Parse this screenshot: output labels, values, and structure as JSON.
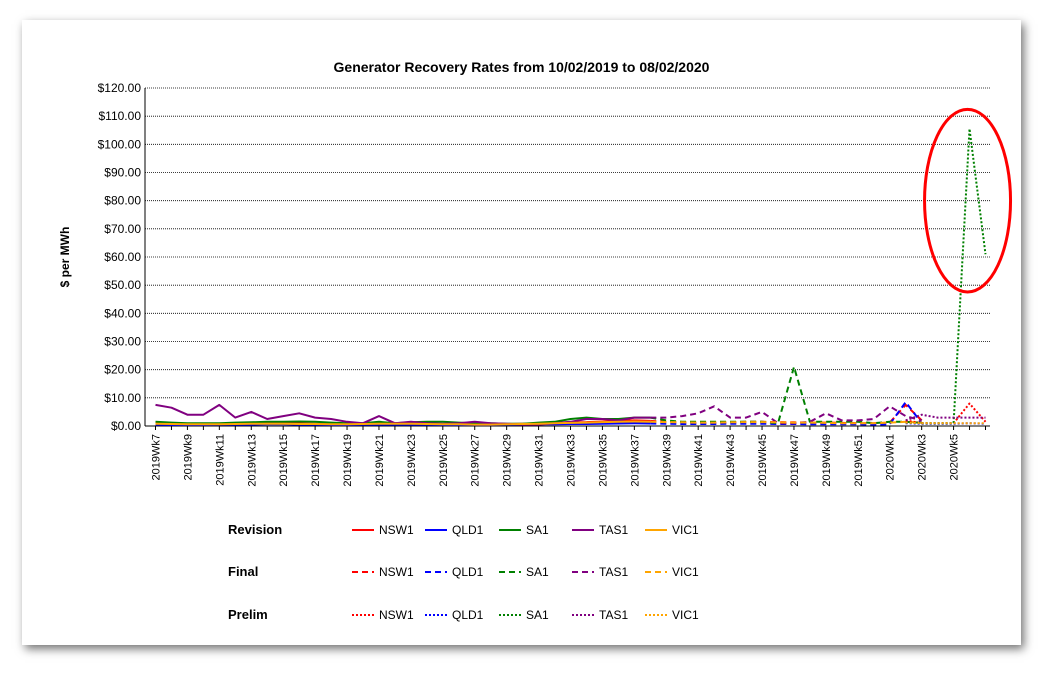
{
  "chart_data": {
    "type": "line",
    "title": "Generator Recovery Rates from 10/02/2019 to 08/02/2020",
    "ylabel": "$ per MWh",
    "xlabel": "",
    "ylim": [
      0,
      120
    ],
    "y_ticks": [
      "$0.00",
      "$10.00",
      "$20.00",
      "$30.00",
      "$40.00",
      "$50.00",
      "$60.00",
      "$70.00",
      "$80.00",
      "$90.00",
      "$100.00",
      "$110.00",
      "$120.00"
    ],
    "grid": "horizontal dotted",
    "x_labels": [
      "2019Wk7",
      "2019Wk9",
      "2019Wk11",
      "2019Wk13",
      "2019Wk15",
      "2019Wk17",
      "2019Wk19",
      "2019Wk21",
      "2019Wk23",
      "2019Wk25",
      "2019Wk27",
      "2019Wk29",
      "2019Wk31",
      "2019Wk33",
      "2019Wk35",
      "2019Wk37",
      "2019Wk39",
      "2019Wk41",
      "2019Wk43",
      "2019Wk45",
      "2019Wk47",
      "2019Wk49",
      "2019Wk51",
      "2020Wk1",
      "2020Wk3",
      "2020Wk5"
    ],
    "legend_groups": [
      {
        "group": "Revision",
        "style": "solid"
      },
      {
        "group": "Final",
        "style": "dashed"
      },
      {
        "group": "Prelim",
        "style": "dotted"
      }
    ],
    "regions": [
      {
        "name": "NSW1",
        "color": "#ff0000"
      },
      {
        "name": "QLD1",
        "color": "#0000ff"
      },
      {
        "name": "SA1",
        "color": "#008000"
      },
      {
        "name": "TAS1",
        "color": "#800080"
      },
      {
        "name": "VIC1",
        "color": "#ffa500"
      }
    ],
    "series": [
      {
        "name": "NSW1",
        "group": "Revision",
        "start": 0,
        "values": [
          1,
          0.8,
          0.8,
          0.7,
          0.7,
          0.8,
          0.9,
          1,
          1,
          0.9,
          0.8,
          0.7,
          0.8,
          0.9,
          1,
          1,
          0.9,
          0.8,
          0.7,
          0.6,
          0.5,
          0.5,
          0.7,
          0.8,
          1,
          1.2,
          1.3,
          1.4,
          1.6,
          1.8,
          2,
          1.8
        ]
      },
      {
        "name": "QLD1",
        "group": "Revision",
        "start": 0,
        "values": [
          0.5,
          0.4,
          0.4,
          0.4,
          0.5,
          0.5,
          0.5,
          0.6,
          0.6,
          0.5,
          0.5,
          0.4,
          0.4,
          0.5,
          0.5,
          0.5,
          0.5,
          0.5,
          0.4,
          0.4,
          0.4,
          0.4,
          0.5,
          0.5,
          0.6,
          0.6,
          0.7,
          0.7,
          0.8,
          0.9,
          1,
          0.9
        ]
      },
      {
        "name": "SA1",
        "group": "Revision",
        "start": 0,
        "values": [
          1.5,
          1.2,
          1,
          1,
          1,
          1.2,
          1.3,
          1.5,
          1.5,
          1.6,
          1.5,
          1.2,
          1,
          1,
          1.5,
          1,
          1.3,
          1.5,
          1.5,
          1.2,
          1,
          1,
          0.8,
          0.8,
          1.2,
          1.5,
          2.5,
          3,
          2.5,
          2.5,
          3,
          3
        ]
      },
      {
        "name": "TAS1",
        "group": "Revision",
        "start": 0,
        "values": [
          7.5,
          6.5,
          4,
          4,
          7.5,
          3,
          5,
          2.5,
          3.5,
          4.5,
          3,
          2.5,
          1.5,
          1,
          3.5,
          1,
          1.5,
          1,
          0.8,
          1,
          1.5,
          1,
          0.8,
          0.5,
          0.5,
          1,
          1.5,
          2.5,
          2.5,
          2,
          3,
          3
        ]
      },
      {
        "name": "VIC1",
        "group": "Revision",
        "start": 0,
        "values": [
          0.8,
          0.7,
          0.6,
          0.6,
          0.6,
          0.7,
          0.8,
          0.8,
          0.8,
          0.7,
          0.7,
          0.6,
          0.6,
          0.7,
          0.8,
          0.8,
          0.8,
          0.7,
          0.6,
          0.6,
          0.5,
          0.5,
          0.6,
          0.7,
          0.8,
          1,
          1.1,
          1.2,
          1.4,
          1.5,
          1.6,
          1.5
        ]
      },
      {
        "name": "NSW1",
        "group": "Final",
        "start": 31,
        "values": [
          1.8,
          1.5,
          1.3,
          1.2,
          1.2,
          1.3,
          1.5,
          1.5,
          1.4,
          1.3,
          1.2,
          1.2,
          1.1,
          1,
          1,
          1.2,
          7.5,
          2
        ]
      },
      {
        "name": "QLD1",
        "group": "Final",
        "start": 31,
        "values": [
          0.9,
          0.8,
          0.7,
          0.7,
          0.7,
          0.8,
          0.8,
          0.8,
          0.7,
          0.7,
          0.6,
          0.6,
          0.6,
          0.6,
          0.5,
          0.6,
          8.5,
          1
        ]
      },
      {
        "name": "SA1",
        "group": "Final",
        "start": 31,
        "values": [
          3,
          2,
          1.5,
          1.5,
          1.5,
          1.5,
          1.5,
          1.5,
          1,
          21,
          1.5,
          1.5,
          1.5,
          1.5,
          1,
          1.5,
          1.5,
          1.2
        ]
      },
      {
        "name": "TAS1",
        "group": "Final",
        "start": 31,
        "values": [
          3,
          3,
          3.5,
          4.5,
          7,
          3,
          3,
          5,
          1,
          1,
          1.5,
          4.5,
          2,
          2,
          2.5,
          7,
          3.5,
          2
        ]
      },
      {
        "name": "VIC1",
        "group": "Final",
        "start": 31,
        "values": [
          1.5,
          1.4,
          1.3,
          1.2,
          1.2,
          1.3,
          1.4,
          1.4,
          1.3,
          1.2,
          1.2,
          1.1,
          1,
          1,
          1,
          1.2,
          1.5,
          1.2
        ]
      },
      {
        "name": "NSW1",
        "group": "Prelim",
        "start": 47,
        "values": [
          2,
          1,
          1,
          1,
          8,
          1.5
        ]
      },
      {
        "name": "QLD1",
        "group": "Prelim",
        "start": 47,
        "values": [
          1,
          0.8,
          0.8,
          0.8,
          1,
          0.8
        ]
      },
      {
        "name": "SA1",
        "group": "Prelim",
        "start": 47,
        "values": [
          1.2,
          1,
          1,
          1,
          105.5,
          61
        ]
      },
      {
        "name": "TAS1",
        "group": "Prelim",
        "start": 47,
        "values": [
          2,
          4,
          3,
          3,
          3,
          3
        ]
      },
      {
        "name": "VIC1",
        "group": "Prelim",
        "start": 47,
        "values": [
          1.2,
          1,
          1,
          1,
          1,
          1
        ]
      }
    ],
    "annotations": [
      {
        "type": "ellipse",
        "color": "#ff0000",
        "target": "SA1 Prelim spike 2020Wk5"
      }
    ]
  }
}
